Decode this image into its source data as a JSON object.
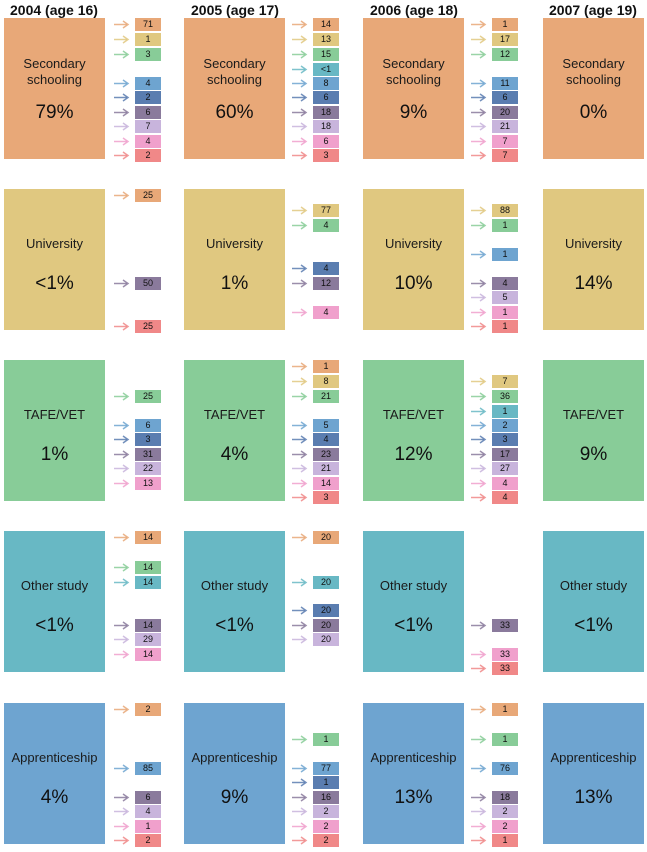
{
  "years": [
    "2004 (age 16)",
    "2005 (age 17)",
    "2006 (age 18)",
    "2007 (age 19)"
  ],
  "colors": {
    "Secondary schooling": "#e8a878",
    "University": "#e0c880",
    "TAFE/VET": "#88cc98",
    "Other study": "#68b8c4",
    "Apprenticeship": "#6ea4d0",
    "Employment": "#5a7db0",
    "Work & study": "#8a7a9c",
    "Unemployed": "#c8b4dc",
    "Not in labour force": "#f0a0cc",
    "Other": "#f08888"
  },
  "blocks": [
    {
      "name": "Secondary schooling",
      "pct": [
        "79%",
        "60%",
        "9%",
        "0%"
      ]
    },
    {
      "name": "University",
      "pct": [
        "<1%",
        "1%",
        "10%",
        "14%"
      ]
    },
    {
      "name": "TAFE/VET",
      "pct": [
        "1%",
        "4%",
        "12%",
        "9%"
      ]
    },
    {
      "name": "Other study",
      "pct": [
        "<1%",
        "<1%",
        "<1%",
        "<1%"
      ]
    },
    {
      "name": "Apprenticeship",
      "pct": [
        "4%",
        "9%",
        "13%",
        "13%"
      ]
    }
  ],
  "flows": [
    [
      [
        {
          "d": "Secondary schooling",
          "v": "71",
          "s": 0
        },
        {
          "d": "University",
          "v": "1",
          "s": 1
        },
        {
          "d": "TAFE/VET",
          "v": "3",
          "s": 2
        },
        {
          "d": "Apprenticeship",
          "v": "4",
          "s": 4
        },
        {
          "d": "Employment",
          "v": "2",
          "s": 5
        },
        {
          "d": "Work & study",
          "v": "6",
          "s": 6
        },
        {
          "d": "Unemployed",
          "v": "7",
          "s": 7
        },
        {
          "d": "Not in labour force",
          "v": "4",
          "s": 8
        },
        {
          "d": "Other",
          "v": "2",
          "s": 9
        }
      ],
      [
        {
          "d": "Secondary schooling",
          "v": "14",
          "s": 0
        },
        {
          "d": "University",
          "v": "13",
          "s": 1
        },
        {
          "d": "TAFE/VET",
          "v": "15",
          "s": 2
        },
        {
          "d": "Other study",
          "v": "<1",
          "s": 3
        },
        {
          "d": "Apprenticeship",
          "v": "8",
          "s": 4
        },
        {
          "d": "Employment",
          "v": "6",
          "s": 5
        },
        {
          "d": "Work & study",
          "v": "18",
          "s": 6
        },
        {
          "d": "Unemployed",
          "v": "18",
          "s": 7
        },
        {
          "d": "Not in labour force",
          "v": "6",
          "s": 8
        },
        {
          "d": "Other",
          "v": "3",
          "s": 9
        }
      ],
      [
        {
          "d": "Secondary schooling",
          "v": "1",
          "s": 0
        },
        {
          "d": "University",
          "v": "17",
          "s": 1
        },
        {
          "d": "TAFE/VET",
          "v": "12",
          "s": 2
        },
        {
          "d": "Apprenticeship",
          "v": "11",
          "s": 4
        },
        {
          "d": "Employment",
          "v": "6",
          "s": 5
        },
        {
          "d": "Work & study",
          "v": "20",
          "s": 6
        },
        {
          "d": "Unemployed",
          "v": "21",
          "s": 7
        },
        {
          "d": "Not in labour force",
          "v": "7",
          "s": 8
        },
        {
          "d": "Other",
          "v": "7",
          "s": 9
        }
      ]
    ],
    [
      [
        {
          "d": "Secondary schooling",
          "v": "25",
          "s": 0
        },
        {
          "d": "Work & study",
          "v": "50",
          "s": 6
        },
        {
          "d": "Other",
          "v": "25",
          "s": 9
        }
      ],
      [
        {
          "d": "University",
          "v": "77",
          "s": 1
        },
        {
          "d": "TAFE/VET",
          "v": "4",
          "s": 2
        },
        {
          "d": "Employment",
          "v": "4",
          "s": 5
        },
        {
          "d": "Work & study",
          "v": "12",
          "s": 6
        },
        {
          "d": "Not in labour force",
          "v": "4",
          "s": 8
        }
      ],
      [
        {
          "d": "University",
          "v": "88",
          "s": 1
        },
        {
          "d": "TAFE/VET",
          "v": "1",
          "s": 2
        },
        {
          "d": "Apprenticeship",
          "v": "1",
          "s": 4
        },
        {
          "d": "Work & study",
          "v": "4",
          "s": 6
        },
        {
          "d": "Unemployed",
          "v": "5",
          "s": 7
        },
        {
          "d": "Not in labour force",
          "v": "1",
          "s": 8
        },
        {
          "d": "Other",
          "v": "1",
          "s": 9
        }
      ]
    ],
    [
      [
        {
          "d": "TAFE/VET",
          "v": "25",
          "s": 2
        },
        {
          "d": "Apprenticeship",
          "v": "6",
          "s": 4
        },
        {
          "d": "Employment",
          "v": "3",
          "s": 5
        },
        {
          "d": "Work & study",
          "v": "31",
          "s": 6
        },
        {
          "d": "Unemployed",
          "v": "22",
          "s": 7
        },
        {
          "d": "Not in labour force",
          "v": "13",
          "s": 8
        }
      ],
      [
        {
          "d": "Secondary schooling",
          "v": "1",
          "s": 0
        },
        {
          "d": "University",
          "v": "8",
          "s": 1
        },
        {
          "d": "TAFE/VET",
          "v": "21",
          "s": 2
        },
        {
          "d": "Apprenticeship",
          "v": "5",
          "s": 4
        },
        {
          "d": "Employment",
          "v": "4",
          "s": 5
        },
        {
          "d": "Work & study",
          "v": "23",
          "s": 6
        },
        {
          "d": "Unemployed",
          "v": "21",
          "s": 7
        },
        {
          "d": "Not in labour force",
          "v": "14",
          "s": 8
        },
        {
          "d": "Other",
          "v": "3",
          "s": 9
        }
      ],
      [
        {
          "d": "University",
          "v": "7",
          "s": 1
        },
        {
          "d": "TAFE/VET",
          "v": "36",
          "s": 2
        },
        {
          "d": "Other study",
          "v": "1",
          "s": 3
        },
        {
          "d": "Apprenticeship",
          "v": "2",
          "s": 4
        },
        {
          "d": "Employment",
          "v": "3",
          "s": 5
        },
        {
          "d": "Work & study",
          "v": "17",
          "s": 6
        },
        {
          "d": "Unemployed",
          "v": "27",
          "s": 7
        },
        {
          "d": "Not in labour force",
          "v": "4",
          "s": 8
        },
        {
          "d": "Other",
          "v": "4",
          "s": 9
        }
      ]
    ],
    [
      [
        {
          "d": "Secondary schooling",
          "v": "14",
          "s": 0
        },
        {
          "d": "TAFE/VET",
          "v": "14",
          "s": 2
        },
        {
          "d": "Other study",
          "v": "14",
          "s": 3
        },
        {
          "d": "Work & study",
          "v": "14",
          "s": 6
        },
        {
          "d": "Unemployed",
          "v": "29",
          "s": 7
        },
        {
          "d": "Not in labour force",
          "v": "14",
          "s": 8
        }
      ],
      [
        {
          "d": "Secondary schooling",
          "v": "20",
          "s": 0
        },
        {
          "d": "Other study",
          "v": "20",
          "s": 3
        },
        {
          "d": "Employment",
          "v": "20",
          "s": 5
        },
        {
          "d": "Work & study",
          "v": "20",
          "s": 6
        },
        {
          "d": "Unemployed",
          "v": "20",
          "s": 7
        }
      ],
      [
        {
          "d": "Work & study",
          "v": "33",
          "s": 6
        },
        {
          "d": "Not in labour force",
          "v": "33",
          "s": 8
        },
        {
          "d": "Other",
          "v": "33",
          "s": 9
        }
      ]
    ],
    [
      [
        {
          "d": "Secondary schooling",
          "v": "2",
          "s": 0
        },
        {
          "d": "Apprenticeship",
          "v": "85",
          "s": 4
        },
        {
          "d": "Work & study",
          "v": "6",
          "s": 6
        },
        {
          "d": "Unemployed",
          "v": "4",
          "s": 7
        },
        {
          "d": "Not in labour force",
          "v": "1",
          "s": 8
        },
        {
          "d": "Other",
          "v": "2",
          "s": 9
        }
      ],
      [
        {
          "d": "TAFE/VET",
          "v": "1",
          "s": 2
        },
        {
          "d": "Apprenticeship",
          "v": "77",
          "s": 4
        },
        {
          "d": "Employment",
          "v": "1",
          "s": 5
        },
        {
          "d": "Work & study",
          "v": "16",
          "s": 6
        },
        {
          "d": "Unemployed",
          "v": "2",
          "s": 7
        },
        {
          "d": "Not in labour force",
          "v": "2",
          "s": 8
        },
        {
          "d": "Other",
          "v": "2",
          "s": 9
        }
      ],
      [
        {
          "d": "Secondary schooling",
          "v": "1",
          "s": 0
        },
        {
          "d": "TAFE/VET",
          "v": "1",
          "s": 2
        },
        {
          "d": "Apprenticeship",
          "v": "76",
          "s": 4
        },
        {
          "d": "Work & study",
          "v": "18",
          "s": 6
        },
        {
          "d": "Unemployed",
          "v": "2",
          "s": 7
        },
        {
          "d": "Not in labour force",
          "v": "2",
          "s": 8
        },
        {
          "d": "Other",
          "v": "1",
          "s": 9
        }
      ]
    ]
  ]
}
